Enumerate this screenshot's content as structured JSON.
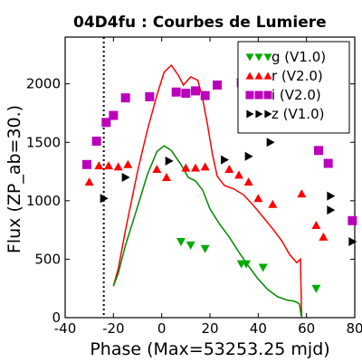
{
  "chart_data": {
    "type": "scatter",
    "title": "04D4fu : Courbes de Lumiere",
    "xlabel": "Phase (Max=53253.25 mjd)",
    "ylabel": "Flux (ZP_ab=30.)",
    "xlim": [
      -40,
      80
    ],
    "ylim": [
      0,
      2400
    ],
    "xticks": [
      "-40",
      "-20",
      "0",
      "20",
      "40",
      "60",
      "80"
    ],
    "yticks": [
      "0",
      "500",
      "1000",
      "1500",
      "2000"
    ],
    "vline_x": -24,
    "legend_position": "top-right",
    "series": [
      {
        "name": "g (V1.0)",
        "color": "#00aa00",
        "marker": "triangle-down",
        "points": [
          [
            8,
            650
          ],
          [
            12,
            620
          ],
          [
            18,
            590
          ],
          [
            33,
            460
          ],
          [
            35,
            460
          ],
          [
            42,
            430
          ],
          [
            64,
            250
          ]
        ]
      },
      {
        "name": "r (V2.0)",
        "color": "#ff0000",
        "marker": "triangle-up",
        "points": [
          [
            -30,
            1160
          ],
          [
            -26,
            1300
          ],
          [
            -22,
            1300
          ],
          [
            -18,
            1290
          ],
          [
            -14,
            1310
          ],
          [
            -2,
            1270
          ],
          [
            2,
            1200
          ],
          [
            10,
            1280
          ],
          [
            14,
            1280
          ],
          [
            18,
            1290
          ],
          [
            28,
            1270
          ],
          [
            32,
            1220
          ],
          [
            36,
            1160
          ],
          [
            40,
            1020
          ],
          [
            46,
            970
          ],
          [
            58,
            1060
          ],
          [
            64,
            790
          ],
          [
            67,
            690
          ]
        ]
      },
      {
        "name": "i (V2.0)",
        "color": "#bb00bb",
        "marker": "square",
        "points": [
          [
            -31,
            1310
          ],
          [
            -27,
            1510
          ],
          [
            -23,
            1670
          ],
          [
            -20,
            1730
          ],
          [
            -15,
            1880
          ],
          [
            -5,
            1890
          ],
          [
            6,
            1930
          ],
          [
            10,
            1920
          ],
          [
            14,
            1940
          ],
          [
            18,
            1900
          ],
          [
            23,
            1990
          ],
          [
            33,
            2010
          ],
          [
            38,
            1910
          ],
          [
            41,
            1870
          ],
          [
            44,
            1860
          ],
          [
            61,
            1620
          ],
          [
            65,
            1430
          ],
          [
            69,
            1320
          ],
          [
            79,
            830
          ]
        ]
      },
      {
        "name": "z (V1.0)",
        "color": "#000000",
        "marker": "triangle-right",
        "points": [
          [
            -24,
            1020
          ],
          [
            -15,
            1200
          ],
          [
            3,
            1340
          ],
          [
            26,
            1350
          ],
          [
            36,
            1380
          ],
          [
            45,
            1500
          ],
          [
            70,
            920
          ],
          [
            70,
            1040
          ],
          [
            79,
            650
          ]
        ]
      }
    ],
    "model_curves": [
      {
        "color": "#ff0000",
        "points": [
          [
            -20,
            270
          ],
          [
            -18,
            420
          ],
          [
            -15,
            750
          ],
          [
            -10,
            1250
          ],
          [
            -6,
            1600
          ],
          [
            -2,
            1900
          ],
          [
            1,
            2100
          ],
          [
            4,
            2160
          ],
          [
            7,
            2070
          ],
          [
            9,
            1990
          ],
          [
            12,
            2060
          ],
          [
            15,
            2030
          ],
          [
            17,
            1870
          ],
          [
            19,
            1650
          ],
          [
            21,
            1400
          ],
          [
            23,
            1210
          ],
          [
            26,
            1130
          ],
          [
            30,
            1100
          ],
          [
            34,
            1050
          ],
          [
            38,
            960
          ],
          [
            42,
            860
          ],
          [
            46,
            760
          ],
          [
            50,
            650
          ],
          [
            53,
            540
          ],
          [
            56,
            470
          ],
          [
            57.5,
            500
          ],
          [
            58,
            0
          ]
        ]
      },
      {
        "color": "#008800",
        "points": [
          [
            -20,
            270
          ],
          [
            -18,
            380
          ],
          [
            -15,
            620
          ],
          [
            -10,
            950
          ],
          [
            -6,
            1220
          ],
          [
            -2,
            1420
          ],
          [
            1,
            1470
          ],
          [
            4,
            1430
          ],
          [
            8,
            1310
          ],
          [
            11,
            1200
          ],
          [
            14,
            1170
          ],
          [
            17,
            1090
          ],
          [
            20,
            930
          ],
          [
            24,
            800
          ],
          [
            28,
            690
          ],
          [
            32,
            560
          ],
          [
            36,
            440
          ],
          [
            40,
            330
          ],
          [
            44,
            240
          ],
          [
            48,
            180
          ],
          [
            52,
            150
          ],
          [
            55,
            140
          ],
          [
            57,
            120
          ],
          [
            58,
            0
          ]
        ]
      }
    ]
  }
}
